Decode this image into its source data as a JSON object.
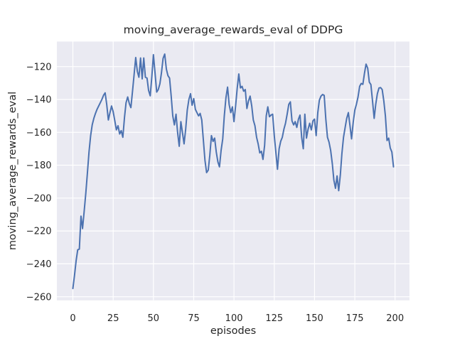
{
  "figure": {
    "background_color": "#ffffff",
    "axes_background_color": "#eaeaf2",
    "grid_color": "#ffffff",
    "text_color": "#262626"
  },
  "chart_data": {
    "type": "line",
    "title": "moving_average_rewards_eval of DDPG",
    "xlabel": "episodes",
    "ylabel": "moving_average_rewards_eval",
    "grid": true,
    "legend": null,
    "xlim": [
      -9.95,
      208.95
    ],
    "ylim": [
      -262.2,
      -104.8
    ],
    "x_ticks": [
      0,
      25,
      50,
      75,
      100,
      125,
      150,
      175,
      200
    ],
    "x_tick_labels": [
      "0",
      "25",
      "50",
      "75",
      "100",
      "125",
      "150",
      "175",
      "200"
    ],
    "y_ticks": [
      -120,
      -140,
      -160,
      -180,
      -200,
      -220,
      -240,
      -260
    ],
    "y_tick_labels": [
      "−120",
      "−140",
      "−160",
      "−180",
      "−200",
      "−220",
      "−240",
      "−260"
    ],
    "series": [
      {
        "name": "moving_average_rewards_eval",
        "color": "#4c72b0",
        "x_start": 0,
        "x_step": 1,
        "y": [
          -255,
          -247,
          -238,
          -231.5,
          -231,
          -211,
          -218.5,
          -208,
          -197,
          -185,
          -172,
          -162,
          -155.5,
          -151.5,
          -148.5,
          -146,
          -144,
          -142,
          -140,
          -137.5,
          -136,
          -143,
          -152.5,
          -148,
          -144,
          -147.5,
          -153,
          -158.5,
          -156,
          -161,
          -159,
          -163,
          -151,
          -142,
          -138.5,
          -142.5,
          -145,
          -135,
          -125,
          -114.5,
          -123,
          -126.5,
          -114.8,
          -127.5,
          -114.8,
          -126.5,
          -127,
          -134.5,
          -137.8,
          -126,
          -112.8,
          -124,
          -135.5,
          -134,
          -130.5,
          -123.5,
          -115,
          -112.4,
          -121.5,
          -125.5,
          -127,
          -138,
          -150,
          -155.5,
          -149,
          -160,
          -168.5,
          -153.5,
          -160,
          -167,
          -158,
          -146.5,
          -140,
          -136.5,
          -143.5,
          -139.5,
          -146,
          -148,
          -150,
          -148.5,
          -152.5,
          -165,
          -177,
          -184.5,
          -183,
          -174,
          -162,
          -165.5,
          -163.5,
          -172,
          -178,
          -181,
          -171,
          -164,
          -150,
          -139,
          -132.5,
          -143,
          -148,
          -144.5,
          -153.5,
          -144,
          -133,
          -124.5,
          -133,
          -132,
          -135,
          -134,
          -145.5,
          -141,
          -138,
          -144,
          -152.5,
          -156,
          -163,
          -167,
          -172.5,
          -171.5,
          -176.5,
          -168,
          -150,
          -144.5,
          -150.5,
          -149.5,
          -149,
          -162,
          -172,
          -182.5,
          -170,
          -165.5,
          -163,
          -158,
          -154.5,
          -149,
          -143,
          -141.5,
          -153,
          -155.5,
          -153.5,
          -157,
          -152,
          -149.5,
          -163,
          -170,
          -149,
          -163.5,
          -158,
          -154.5,
          -158.5,
          -153,
          -152,
          -162,
          -148,
          -140.5,
          -138,
          -137,
          -137.5,
          -152,
          -163,
          -166,
          -171,
          -179,
          -189,
          -194,
          -186.5,
          -195.5,
          -186,
          -173,
          -163,
          -157,
          -151.5,
          -148,
          -156,
          -164,
          -154,
          -146.5,
          -143,
          -138.5,
          -132,
          -130.3,
          -130.8,
          -124,
          -118.5,
          -121,
          -129.5,
          -131,
          -141,
          -151.5,
          -143,
          -136.5,
          -133,
          -132.8,
          -134,
          -141,
          -150,
          -165,
          -163.5,
          -169.5,
          -172,
          -181
        ]
      }
    ]
  }
}
